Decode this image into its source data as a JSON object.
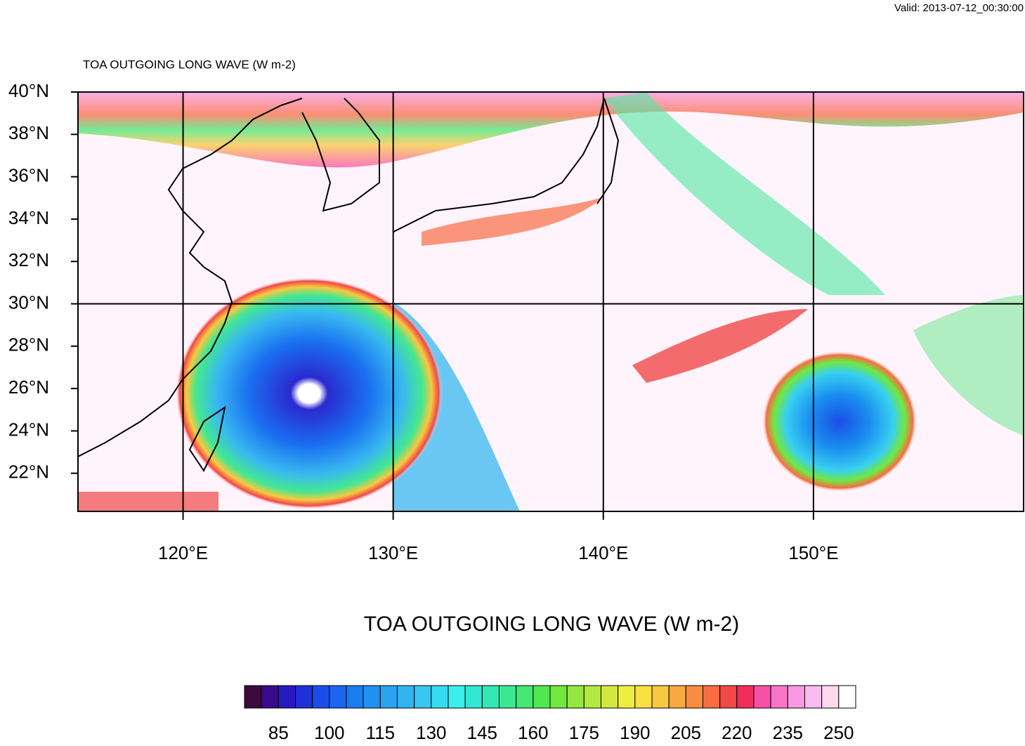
{
  "valid_time": "Valid: 2013-07-12_00:30:00",
  "chart_data": {
    "type": "map",
    "title": "TOA OUTGOING LONG WAVE   (W m-2)",
    "xlim": [
      115,
      160
    ],
    "ylim": [
      20.2,
      40
    ],
    "xticks": [
      {
        "value": 120,
        "label": "120°E"
      },
      {
        "value": 130,
        "label": "130°E"
      },
      {
        "value": 140,
        "label": "140°E"
      },
      {
        "value": 150,
        "label": "150°E"
      }
    ],
    "yticks": [
      {
        "value": 40,
        "label": "40°N"
      },
      {
        "value": 38,
        "label": "38°N"
      },
      {
        "value": 36,
        "label": "36°N"
      },
      {
        "value": 34,
        "label": "34°N"
      },
      {
        "value": 32,
        "label": "32°N"
      },
      {
        "value": 30,
        "label": "30°N"
      },
      {
        "value": 28,
        "label": "28°N"
      },
      {
        "value": 26,
        "label": "26°N"
      },
      {
        "value": 24,
        "label": "24°N"
      },
      {
        "value": 22,
        "label": "22°N"
      }
    ],
    "grid_lines": {
      "x": [
        120,
        130,
        140,
        150
      ],
      "y": [
        30
      ]
    },
    "colorbar": {
      "title": "TOA OUTGOING LONG WAVE  (W m-2)",
      "levels": [
        80,
        85,
        90,
        95,
        100,
        105,
        110,
        115,
        120,
        125,
        130,
        135,
        140,
        145,
        150,
        155,
        160,
        165,
        170,
        175,
        180,
        185,
        190,
        195,
        200,
        205,
        210,
        215,
        220,
        225,
        230,
        235,
        240,
        245,
        250
      ],
      "colors": [
        "#3c0a3c",
        "#3a0a8c",
        "#2818c0",
        "#1e30d8",
        "#1a4ee8",
        "#1a66f0",
        "#1a7ef0",
        "#1f92f0",
        "#28a4f0",
        "#32b4f0",
        "#38c6f2",
        "#38daf0",
        "#3aeeee",
        "#30e8d2",
        "#32e8b2",
        "#3ae892",
        "#44e872",
        "#50e850",
        "#70e840",
        "#92e840",
        "#b2e840",
        "#d2e840",
        "#eeee40",
        "#f8e040",
        "#f8c840",
        "#f8a840",
        "#f88c40",
        "#f86c44",
        "#f04848",
        "#f02c5c",
        "#f850a8",
        "#f874c8",
        "#f898e0",
        "#f8bcf0",
        "#ffd8f0",
        "#ffffff"
      ],
      "labels": [
        85,
        100,
        115,
        130,
        145,
        160,
        175,
        190,
        205,
        220,
        235,
        250
      ]
    }
  }
}
